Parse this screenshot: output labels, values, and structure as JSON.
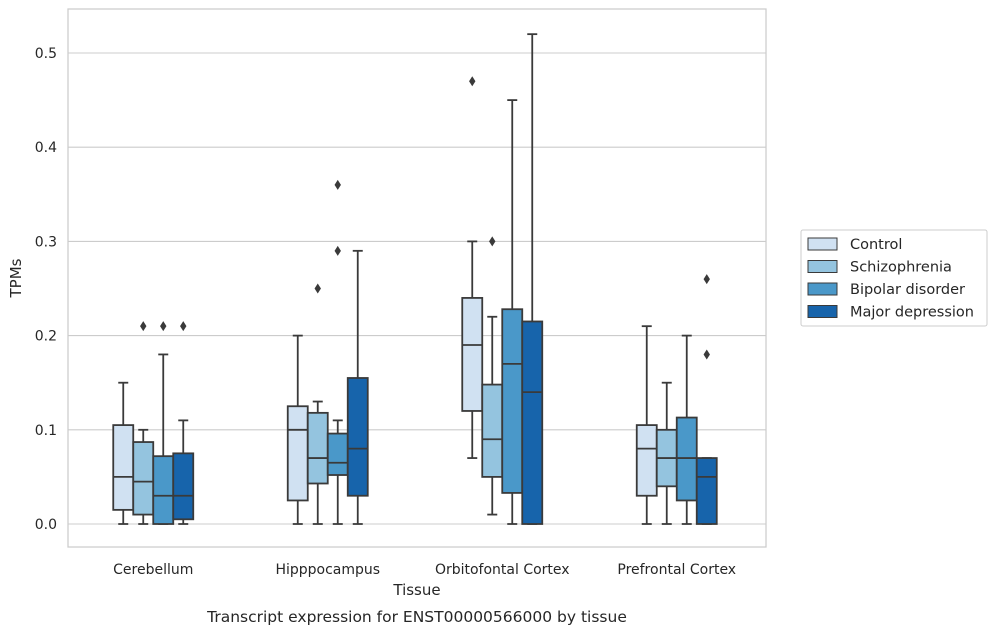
{
  "caption": "Transcript expression for ENST00000566000 by tissue",
  "chart_data": {
    "type": "box",
    "xlabel": "Tissue",
    "ylabel": "TPMs",
    "ylim": [
      -0.025,
      0.55
    ],
    "yticks": [
      0.0,
      0.1,
      0.2,
      0.3,
      0.4,
      0.5
    ],
    "ytick_labels": [
      "0.0",
      "0.1",
      "0.2",
      "0.3",
      "0.4",
      "0.5"
    ],
    "grid": "horizontal",
    "legend_position": "right",
    "categories": [
      "Cerebellum",
      "Hipppocampus",
      "Orbitofontal Cortex",
      "Prefrontal Cortex"
    ],
    "series": [
      {
        "name": "Control",
        "color": "#d0e1f2",
        "boxes": [
          {
            "whisker_low": 0.0,
            "q1": 0.015,
            "median": 0.05,
            "q3": 0.105,
            "whisker_high": 0.15,
            "outliers": []
          },
          {
            "whisker_low": 0.0,
            "q1": 0.025,
            "median": 0.1,
            "q3": 0.125,
            "whisker_high": 0.2,
            "outliers": []
          },
          {
            "whisker_low": 0.07,
            "q1": 0.12,
            "median": 0.19,
            "q3": 0.24,
            "whisker_high": 0.3,
            "outliers": [
              0.47
            ]
          },
          {
            "whisker_low": 0.0,
            "q1": 0.03,
            "median": 0.08,
            "q3": 0.105,
            "whisker_high": 0.21,
            "outliers": []
          }
        ]
      },
      {
        "name": "Schizophrenia",
        "color": "#94c4df",
        "boxes": [
          {
            "whisker_low": 0.0,
            "q1": 0.01,
            "median": 0.045,
            "q3": 0.087,
            "whisker_high": 0.1,
            "outliers": [
              0.21
            ]
          },
          {
            "whisker_low": 0.0,
            "q1": 0.043,
            "median": 0.07,
            "q3": 0.118,
            "whisker_high": 0.13,
            "outliers": [
              0.25
            ]
          },
          {
            "whisker_low": 0.01,
            "q1": 0.05,
            "median": 0.09,
            "q3": 0.148,
            "whisker_high": 0.22,
            "outliers": [
              0.3
            ]
          },
          {
            "whisker_low": 0.0,
            "q1": 0.04,
            "median": 0.07,
            "q3": 0.1,
            "whisker_high": 0.15,
            "outliers": []
          }
        ]
      },
      {
        "name": "Bipolar disorder",
        "color": "#4a98c9",
        "boxes": [
          {
            "whisker_low": 0.0,
            "q1": 0.0,
            "median": 0.03,
            "q3": 0.072,
            "whisker_high": 0.18,
            "outliers": [
              0.21
            ]
          },
          {
            "whisker_low": 0.0,
            "q1": 0.052,
            "median": 0.065,
            "q3": 0.096,
            "whisker_high": 0.11,
            "outliers": [
              0.29,
              0.36
            ]
          },
          {
            "whisker_low": 0.0,
            "q1": 0.033,
            "median": 0.17,
            "q3": 0.228,
            "whisker_high": 0.45,
            "outliers": []
          },
          {
            "whisker_low": 0.0,
            "q1": 0.025,
            "median": 0.07,
            "q3": 0.113,
            "whisker_high": 0.2,
            "outliers": []
          }
        ]
      },
      {
        "name": "Major depression",
        "color": "#1764ab",
        "boxes": [
          {
            "whisker_low": 0.0,
            "q1": 0.005,
            "median": 0.03,
            "q3": 0.075,
            "whisker_high": 0.11,
            "outliers": [
              0.21
            ]
          },
          {
            "whisker_low": 0.0,
            "q1": 0.03,
            "median": 0.08,
            "q3": 0.155,
            "whisker_high": 0.29,
            "outliers": []
          },
          {
            "whisker_low": 0.0,
            "q1": 0.0,
            "median": 0.14,
            "q3": 0.215,
            "whisker_high": 0.52,
            "outliers": []
          },
          {
            "whisker_low": 0.0,
            "q1": 0.0,
            "median": 0.05,
            "q3": 0.07,
            "whisker_high": 0.07,
            "outliers": [
              0.18,
              0.26
            ]
          }
        ]
      }
    ]
  }
}
